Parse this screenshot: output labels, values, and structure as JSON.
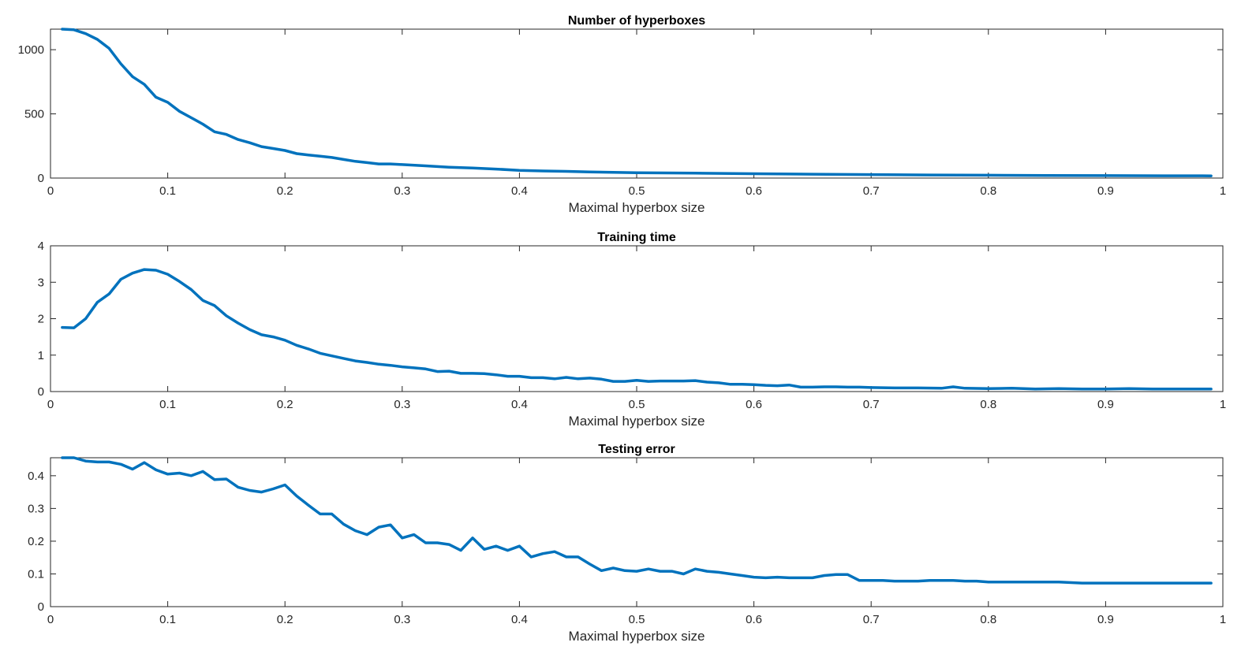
{
  "chart_data": [
    {
      "type": "line",
      "title": "Number of hyperboxes",
      "xlabel": "Maximal hyperbox size",
      "ylabel": "",
      "xlim": [
        0,
        1
      ],
      "ylim": [
        0,
        1160
      ],
      "xticks": [
        0,
        0.1,
        0.2,
        0.3,
        0.4,
        0.5,
        0.6,
        0.7,
        0.8,
        0.9,
        1
      ],
      "xtick_labels": [
        "0",
        "0.1",
        "0.2",
        "0.3",
        "0.4",
        "0.5",
        "0.6",
        "0.7",
        "0.8",
        "0.9",
        "1"
      ],
      "yticks": [
        0,
        500,
        1000
      ],
      "ytick_labels": [
        "0",
        "500",
        "1000"
      ],
      "grid": false,
      "color": "#0072BD",
      "x": [
        0.01,
        0.02,
        0.03,
        0.04,
        0.05,
        0.06,
        0.07,
        0.08,
        0.09,
        0.1,
        0.11,
        0.12,
        0.13,
        0.14,
        0.15,
        0.16,
        0.17,
        0.18,
        0.19,
        0.2,
        0.21,
        0.22,
        0.23,
        0.24,
        0.25,
        0.26,
        0.27,
        0.28,
        0.29,
        0.3,
        0.32,
        0.34,
        0.36,
        0.38,
        0.4,
        0.42,
        0.44,
        0.46,
        0.48,
        0.5,
        0.55,
        0.6,
        0.65,
        0.7,
        0.75,
        0.8,
        0.85,
        0.9,
        0.95,
        0.99
      ],
      "y": [
        1160,
        1155,
        1125,
        1080,
        1010,
        890,
        790,
        730,
        630,
        590,
        520,
        470,
        420,
        360,
        340,
        300,
        275,
        245,
        230,
        215,
        190,
        180,
        170,
        160,
        145,
        130,
        120,
        110,
        110,
        105,
        95,
        85,
        78,
        70,
        60,
        55,
        52,
        48,
        45,
        42,
        38,
        34,
        30,
        27,
        24,
        22,
        20,
        19,
        18,
        17
      ]
    },
    {
      "type": "line",
      "title": "Training time",
      "xlabel": "Maximal hyperbox size",
      "ylabel": "",
      "xlim": [
        0,
        1
      ],
      "ylim": [
        0,
        4
      ],
      "xticks": [
        0,
        0.1,
        0.2,
        0.3,
        0.4,
        0.5,
        0.6,
        0.7,
        0.8,
        0.9,
        1
      ],
      "xtick_labels": [
        "0",
        "0.1",
        "0.2",
        "0.3",
        "0.4",
        "0.5",
        "0.6",
        "0.7",
        "0.8",
        "0.9",
        "1"
      ],
      "yticks": [
        0,
        1,
        2,
        3,
        4
      ],
      "ytick_labels": [
        "0",
        "1",
        "2",
        "3",
        "4"
      ],
      "grid": false,
      "color": "#0072BD",
      "x": [
        0.01,
        0.02,
        0.03,
        0.04,
        0.05,
        0.06,
        0.07,
        0.08,
        0.09,
        0.1,
        0.11,
        0.12,
        0.13,
        0.14,
        0.15,
        0.16,
        0.17,
        0.18,
        0.19,
        0.2,
        0.21,
        0.22,
        0.23,
        0.24,
        0.25,
        0.26,
        0.27,
        0.28,
        0.29,
        0.3,
        0.31,
        0.32,
        0.33,
        0.34,
        0.35,
        0.36,
        0.37,
        0.38,
        0.39,
        0.4,
        0.41,
        0.42,
        0.43,
        0.44,
        0.45,
        0.46,
        0.47,
        0.48,
        0.49,
        0.5,
        0.51,
        0.52,
        0.53,
        0.54,
        0.55,
        0.56,
        0.57,
        0.58,
        0.59,
        0.6,
        0.61,
        0.62,
        0.63,
        0.64,
        0.65,
        0.66,
        0.67,
        0.68,
        0.69,
        0.7,
        0.72,
        0.74,
        0.76,
        0.77,
        0.78,
        0.8,
        0.82,
        0.84,
        0.86,
        0.88,
        0.9,
        0.92,
        0.94,
        0.96,
        0.99
      ],
      "y": [
        1.76,
        1.75,
        2.0,
        2.45,
        2.68,
        3.08,
        3.25,
        3.35,
        3.33,
        3.22,
        3.02,
        2.8,
        2.5,
        2.36,
        2.08,
        1.88,
        1.7,
        1.56,
        1.5,
        1.41,
        1.27,
        1.17,
        1.05,
        0.98,
        0.91,
        0.84,
        0.8,
        0.75,
        0.72,
        0.68,
        0.65,
        0.62,
        0.55,
        0.56,
        0.5,
        0.5,
        0.49,
        0.46,
        0.42,
        0.42,
        0.38,
        0.38,
        0.35,
        0.39,
        0.35,
        0.37,
        0.34,
        0.28,
        0.28,
        0.31,
        0.28,
        0.29,
        0.29,
        0.29,
        0.3,
        0.26,
        0.24,
        0.2,
        0.2,
        0.19,
        0.17,
        0.16,
        0.18,
        0.12,
        0.12,
        0.13,
        0.13,
        0.12,
        0.12,
        0.11,
        0.1,
        0.1,
        0.09,
        0.13,
        0.09,
        0.08,
        0.09,
        0.07,
        0.08,
        0.07,
        0.07,
        0.08,
        0.07,
        0.07,
        0.07
      ]
    },
    {
      "type": "line",
      "title": "Testing error",
      "xlabel": "Maximal hyperbox size",
      "ylabel": "",
      "xlim": [
        0,
        1
      ],
      "ylim": [
        0,
        0.455
      ],
      "xticks": [
        0,
        0.1,
        0.2,
        0.3,
        0.4,
        0.5,
        0.6,
        0.7,
        0.8,
        0.9,
        1
      ],
      "xtick_labels": [
        "0",
        "0.1",
        "0.2",
        "0.3",
        "0.4",
        "0.5",
        "0.6",
        "0.7",
        "0.8",
        "0.9",
        "1"
      ],
      "yticks": [
        0,
        0.1,
        0.2,
        0.3,
        0.4
      ],
      "ytick_labels": [
        "0",
        "0.1",
        "0.2",
        "0.3",
        "0.4"
      ],
      "grid": false,
      "color": "#0072BD",
      "x": [
        0.01,
        0.02,
        0.03,
        0.04,
        0.05,
        0.06,
        0.07,
        0.08,
        0.09,
        0.1,
        0.11,
        0.12,
        0.13,
        0.14,
        0.15,
        0.16,
        0.17,
        0.18,
        0.19,
        0.2,
        0.21,
        0.22,
        0.23,
        0.24,
        0.25,
        0.26,
        0.27,
        0.28,
        0.29,
        0.3,
        0.31,
        0.32,
        0.33,
        0.34,
        0.35,
        0.36,
        0.37,
        0.38,
        0.39,
        0.4,
        0.41,
        0.42,
        0.43,
        0.44,
        0.45,
        0.46,
        0.47,
        0.48,
        0.49,
        0.5,
        0.51,
        0.52,
        0.53,
        0.54,
        0.55,
        0.56,
        0.57,
        0.58,
        0.59,
        0.6,
        0.61,
        0.62,
        0.63,
        0.64,
        0.65,
        0.66,
        0.67,
        0.68,
        0.69,
        0.7,
        0.71,
        0.72,
        0.73,
        0.74,
        0.75,
        0.76,
        0.77,
        0.78,
        0.79,
        0.8,
        0.82,
        0.84,
        0.86,
        0.88,
        0.9,
        0.92,
        0.94,
        0.96,
        0.99
      ],
      "y": [
        0.455,
        0.455,
        0.445,
        0.442,
        0.442,
        0.435,
        0.42,
        0.44,
        0.418,
        0.405,
        0.408,
        0.4,
        0.413,
        0.388,
        0.39,
        0.365,
        0.355,
        0.35,
        0.36,
        0.372,
        0.338,
        0.31,
        0.283,
        0.283,
        0.252,
        0.232,
        0.22,
        0.243,
        0.25,
        0.21,
        0.22,
        0.195,
        0.195,
        0.19,
        0.172,
        0.21,
        0.175,
        0.185,
        0.172,
        0.185,
        0.152,
        0.162,
        0.168,
        0.152,
        0.152,
        0.13,
        0.11,
        0.118,
        0.11,
        0.108,
        0.115,
        0.108,
        0.108,
        0.1,
        0.115,
        0.108,
        0.105,
        0.1,
        0.095,
        0.09,
        0.088,
        0.09,
        0.088,
        0.088,
        0.088,
        0.095,
        0.098,
        0.098,
        0.08,
        0.08,
        0.08,
        0.078,
        0.078,
        0.078,
        0.08,
        0.08,
        0.08,
        0.078,
        0.078,
        0.075,
        0.075,
        0.075,
        0.075,
        0.072,
        0.072,
        0.072,
        0.072,
        0.072,
        0.072
      ]
    }
  ]
}
